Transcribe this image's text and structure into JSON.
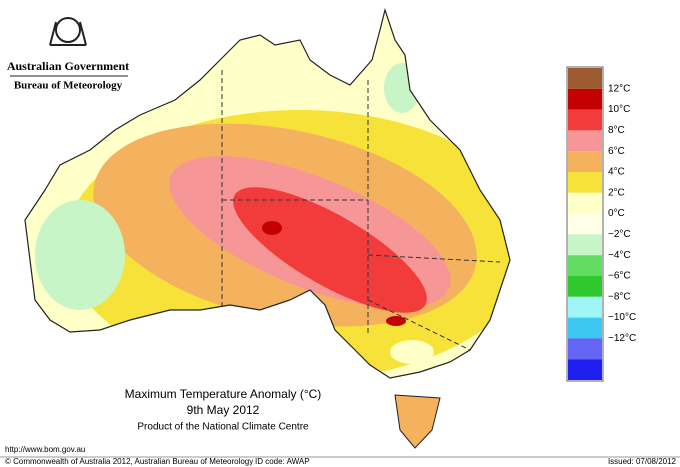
{
  "header": {
    "government": "Australian Government",
    "bureau": "Bureau of Meteorology"
  },
  "title": "Maximum Temperature Anomaly (°C)",
  "date": "9th May 2012",
  "product": "Product of the National Climate Centre",
  "url": "http://www.bom.gov.au",
  "footer": {
    "copyright": "© Commonwealth of Australia 2012, Australian Bureau of Meteorology",
    "id_code": "ID code: AWAP",
    "issued": "Issued: 07/08/2012"
  },
  "legend": {
    "colors": [
      "#9b5a2f",
      "#c40000",
      "#f23c3c",
      "#f79696",
      "#f5b25e",
      "#f7e23a",
      "#ffffc8",
      "#ffffe8",
      "#c8f5c8",
      "#63dc63",
      "#2fc82f",
      "#9ff5f5",
      "#3cc8f0",
      "#6464f5",
      "#1e1ef0"
    ],
    "labels": [
      "12°C",
      "10°C",
      "8°C",
      "6°C",
      "4°C",
      "2°C",
      "0°C",
      "−2°C",
      "−4°C",
      "−6°C",
      "−8°C",
      "−10°C",
      "−12°C"
    ]
  }
}
